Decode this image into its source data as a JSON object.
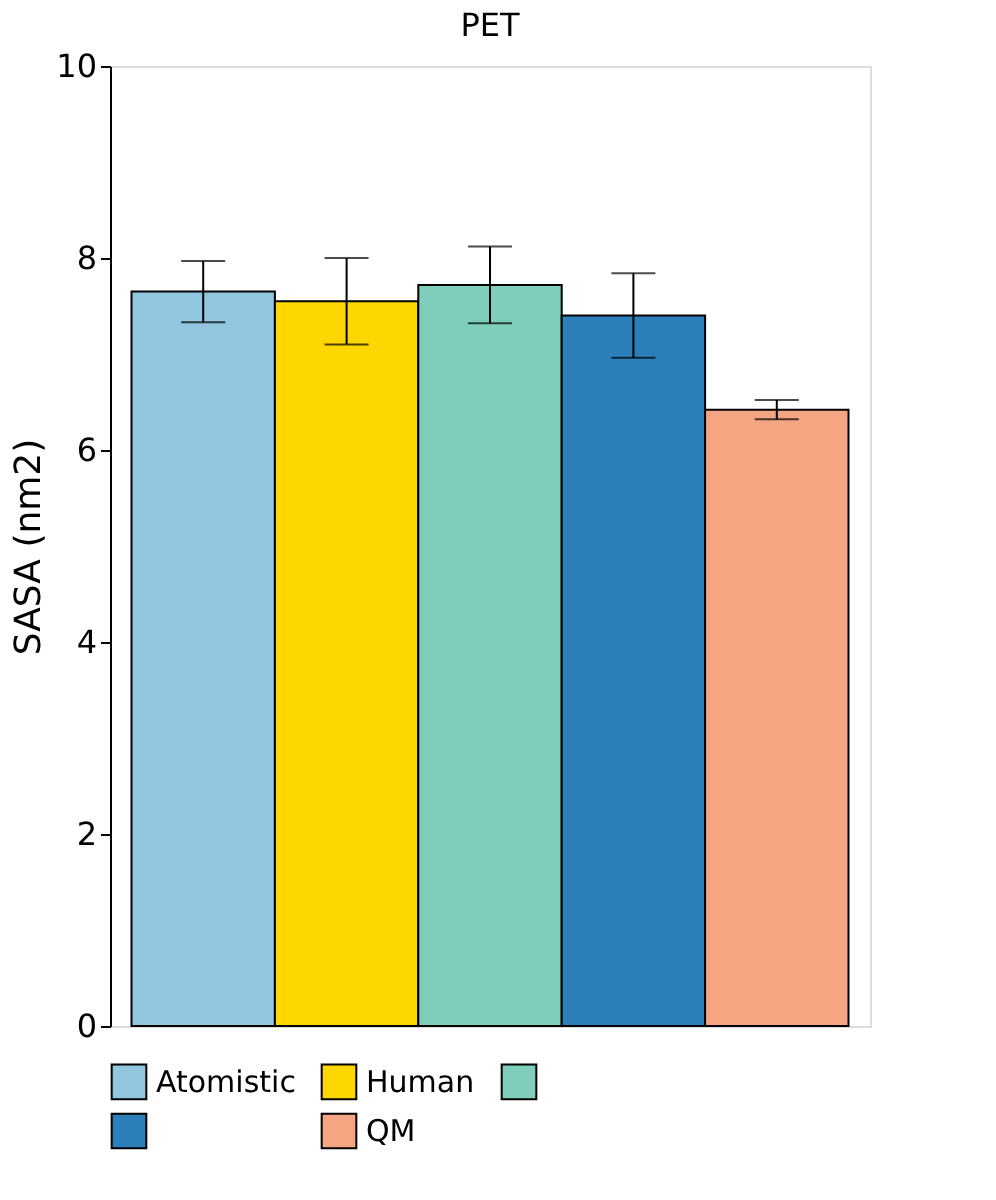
{
  "chart_data": {
    "type": "bar",
    "title": "PET",
    "ylabel": "SASA (nm2)",
    "categories": [
      null
    ],
    "series": [
      {
        "name": "Atomistic",
        "color": "#92c5de",
        "values": [
          7.65
        ],
        "errors": [
          0.32
        ]
      },
      {
        "name": "Human",
        "color": "#ffd700",
        "values": [
          7.55
        ],
        "errors": [
          0.45
        ]
      },
      {
        "color": "#7fcdbb",
        "values": [
          7.72
        ],
        "errors": [
          0.4
        ]
      },
      {
        "color": "#2c7fb8",
        "values": [
          7.4
        ],
        "errors": [
          0.44
        ]
      },
      {
        "name": "QM",
        "color": "#f4a582",
        "values": [
          6.42
        ],
        "errors": [
          0.1
        ]
      }
    ],
    "ylim": [
      0,
      10
    ],
    "yticks": [
      0,
      2,
      4,
      6,
      8,
      10
    ],
    "grid": false,
    "legend": "bottom",
    "tick_labels": "y"
  }
}
